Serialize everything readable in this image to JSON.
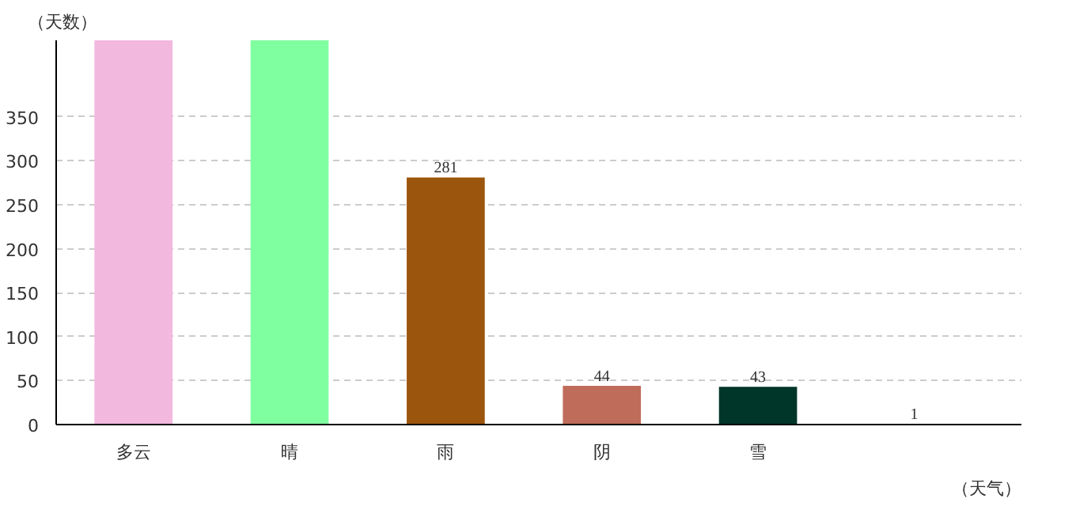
{
  "chart_data": {
    "type": "bar",
    "xlabel": "（天气）",
    "ylabel": "（天数）",
    "categories": [
      "多云",
      "晴",
      "雨",
      "阴",
      "雪",
      null
    ],
    "values": [
      437,
      437,
      281,
      44,
      43,
      1
    ],
    "value_labels": [
      null,
      null,
      "281",
      "44",
      "43",
      "1"
    ],
    "colors": [
      "#f2b8de",
      "#80ffa0",
      "#9c550c",
      "#c06c5a",
      "#00352a",
      "#2aa0b0"
    ],
    "ylim": [
      0,
      437
    ],
    "yticks": [
      0,
      50,
      100,
      150,
      200,
      250,
      300,
      350
    ],
    "grid": "y"
  }
}
